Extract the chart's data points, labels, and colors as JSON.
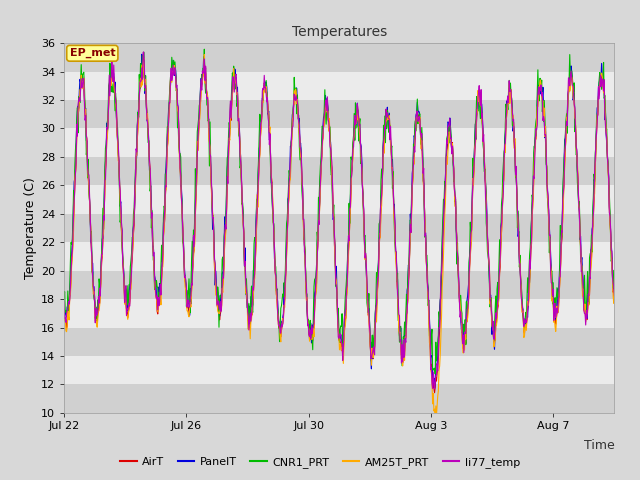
{
  "title": "Temperatures",
  "xlabel": "Time",
  "ylabel": "Temperature (C)",
  "annotation": "EP_met",
  "ylim": [
    10,
    36
  ],
  "yticks": [
    10,
    12,
    14,
    16,
    18,
    20,
    22,
    24,
    26,
    28,
    30,
    32,
    34,
    36
  ],
  "x_tick_labels": [
    "Jul 22",
    "Jul 26",
    "Jul 30",
    "Aug 3",
    "Aug 7"
  ],
  "x_tick_positions": [
    0,
    4,
    8,
    12,
    16
  ],
  "n_days": 18,
  "series": [
    {
      "label": "AirT",
      "color": "#dd0000"
    },
    {
      "label": "PanelT",
      "color": "#0000dd"
    },
    {
      "label": "CNR1_PRT",
      "color": "#00bb00"
    },
    {
      "label": "AM25T_PRT",
      "color": "#ffaa00"
    },
    {
      "label": "li77_temp",
      "color": "#bb00bb"
    }
  ],
  "bg_outer": "#d8d8d8",
  "bg_plot": "#ebebeb",
  "band_dark": "#d0d0d0",
  "band_light": "#ebebeb",
  "linewidth": 0.8,
  "figsize": [
    6.4,
    4.8
  ],
  "dpi": 100,
  "title_fontsize": 10,
  "tick_fontsize": 8,
  "label_fontsize": 9,
  "legend_fontsize": 8,
  "annotation_fontsize": 8
}
